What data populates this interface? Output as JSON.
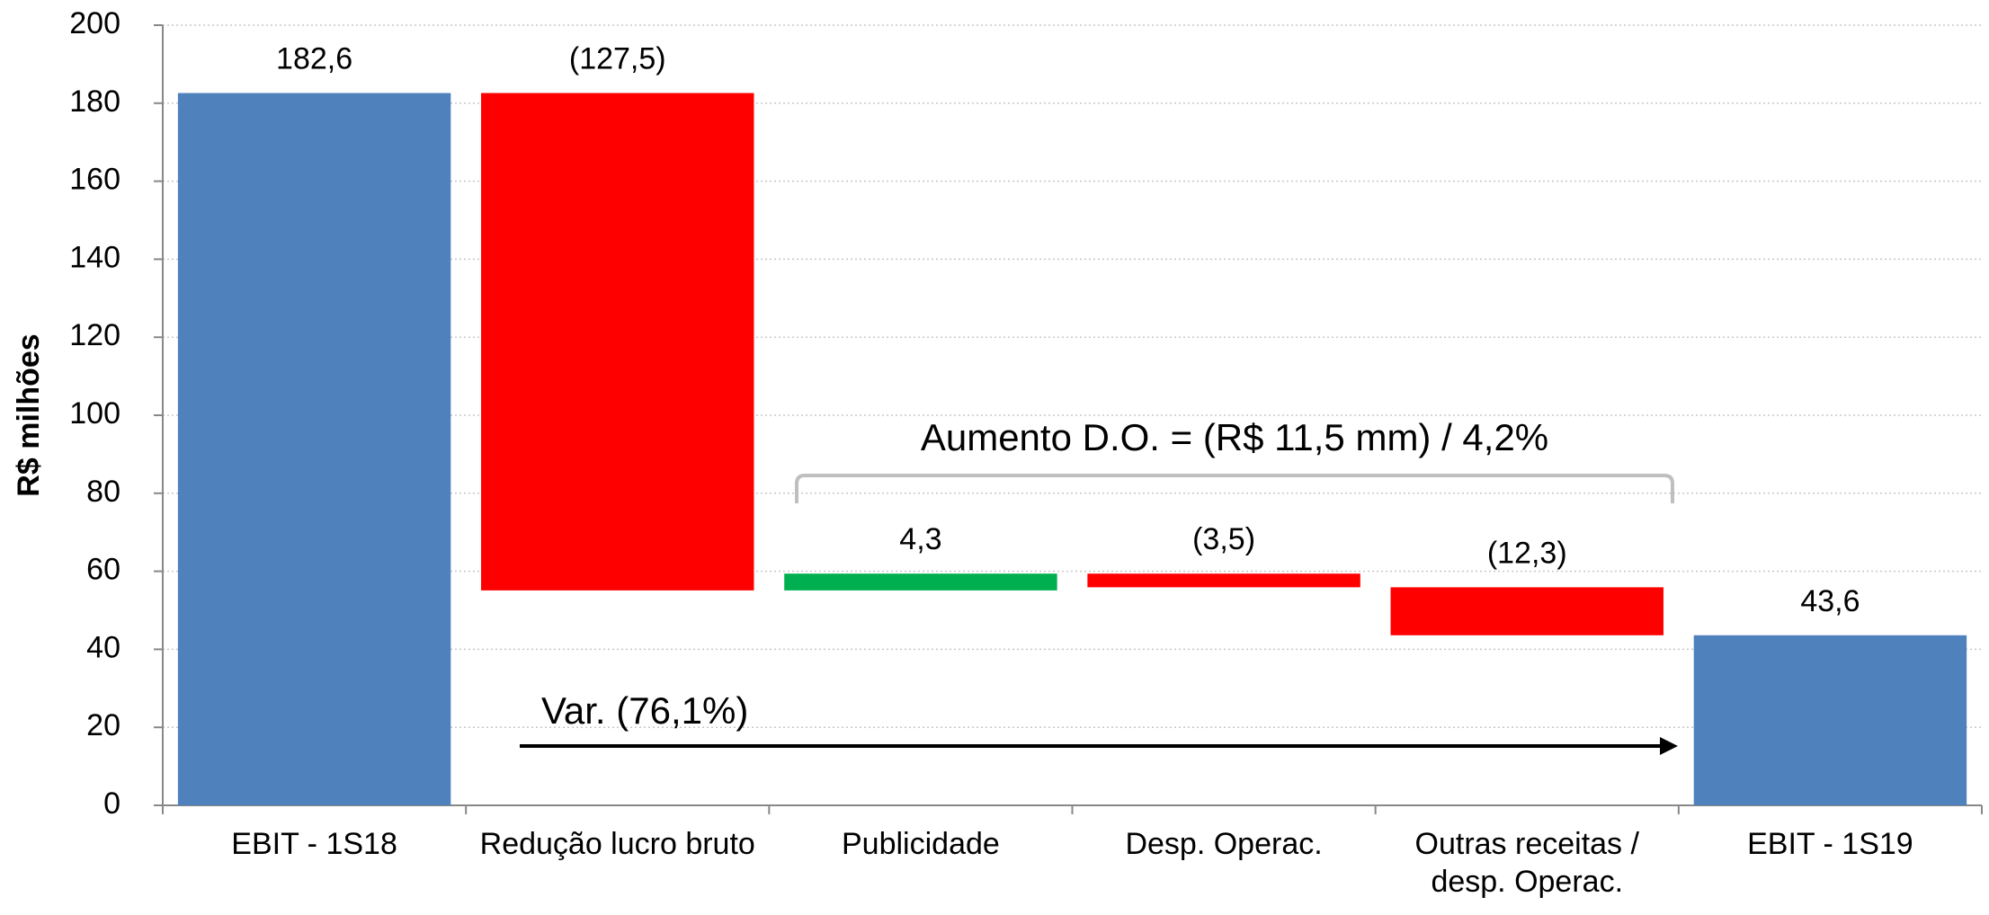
{
  "chart_data": {
    "type": "waterfall",
    "y_label": "R$ milhões",
    "categories": [
      "EBIT - 1S18",
      "Redução lucro bruto",
      "Publicidade",
      "Desp. Operac.",
      "Outras receitas / desp. Operac.",
      "EBIT - 1S19"
    ],
    "values": [
      182.6,
      -127.5,
      4.3,
      -3.5,
      -12.3,
      43.6
    ],
    "value_labels": [
      "182,6",
      "(127,5)",
      "4,3",
      "(3,5)",
      "(12,3)",
      "43,6"
    ],
    "measure": [
      "absolute",
      "relative",
      "relative",
      "relative",
      "relative",
      "absolute"
    ],
    "colors": [
      "#4f81bd",
      "#ff0000",
      "#00b050",
      "#ff0000",
      "#ff0000",
      "#4f81bd"
    ],
    "ylim": [
      0,
      200
    ],
    "yticks": [
      0,
      20,
      40,
      60,
      80,
      100,
      120,
      140,
      160,
      180,
      200
    ],
    "grid": true,
    "annotations": [
      "Aumento D.O. = (R$ 11,5 mm) / 4,2%",
      "Var. (76,1%)"
    ]
  }
}
